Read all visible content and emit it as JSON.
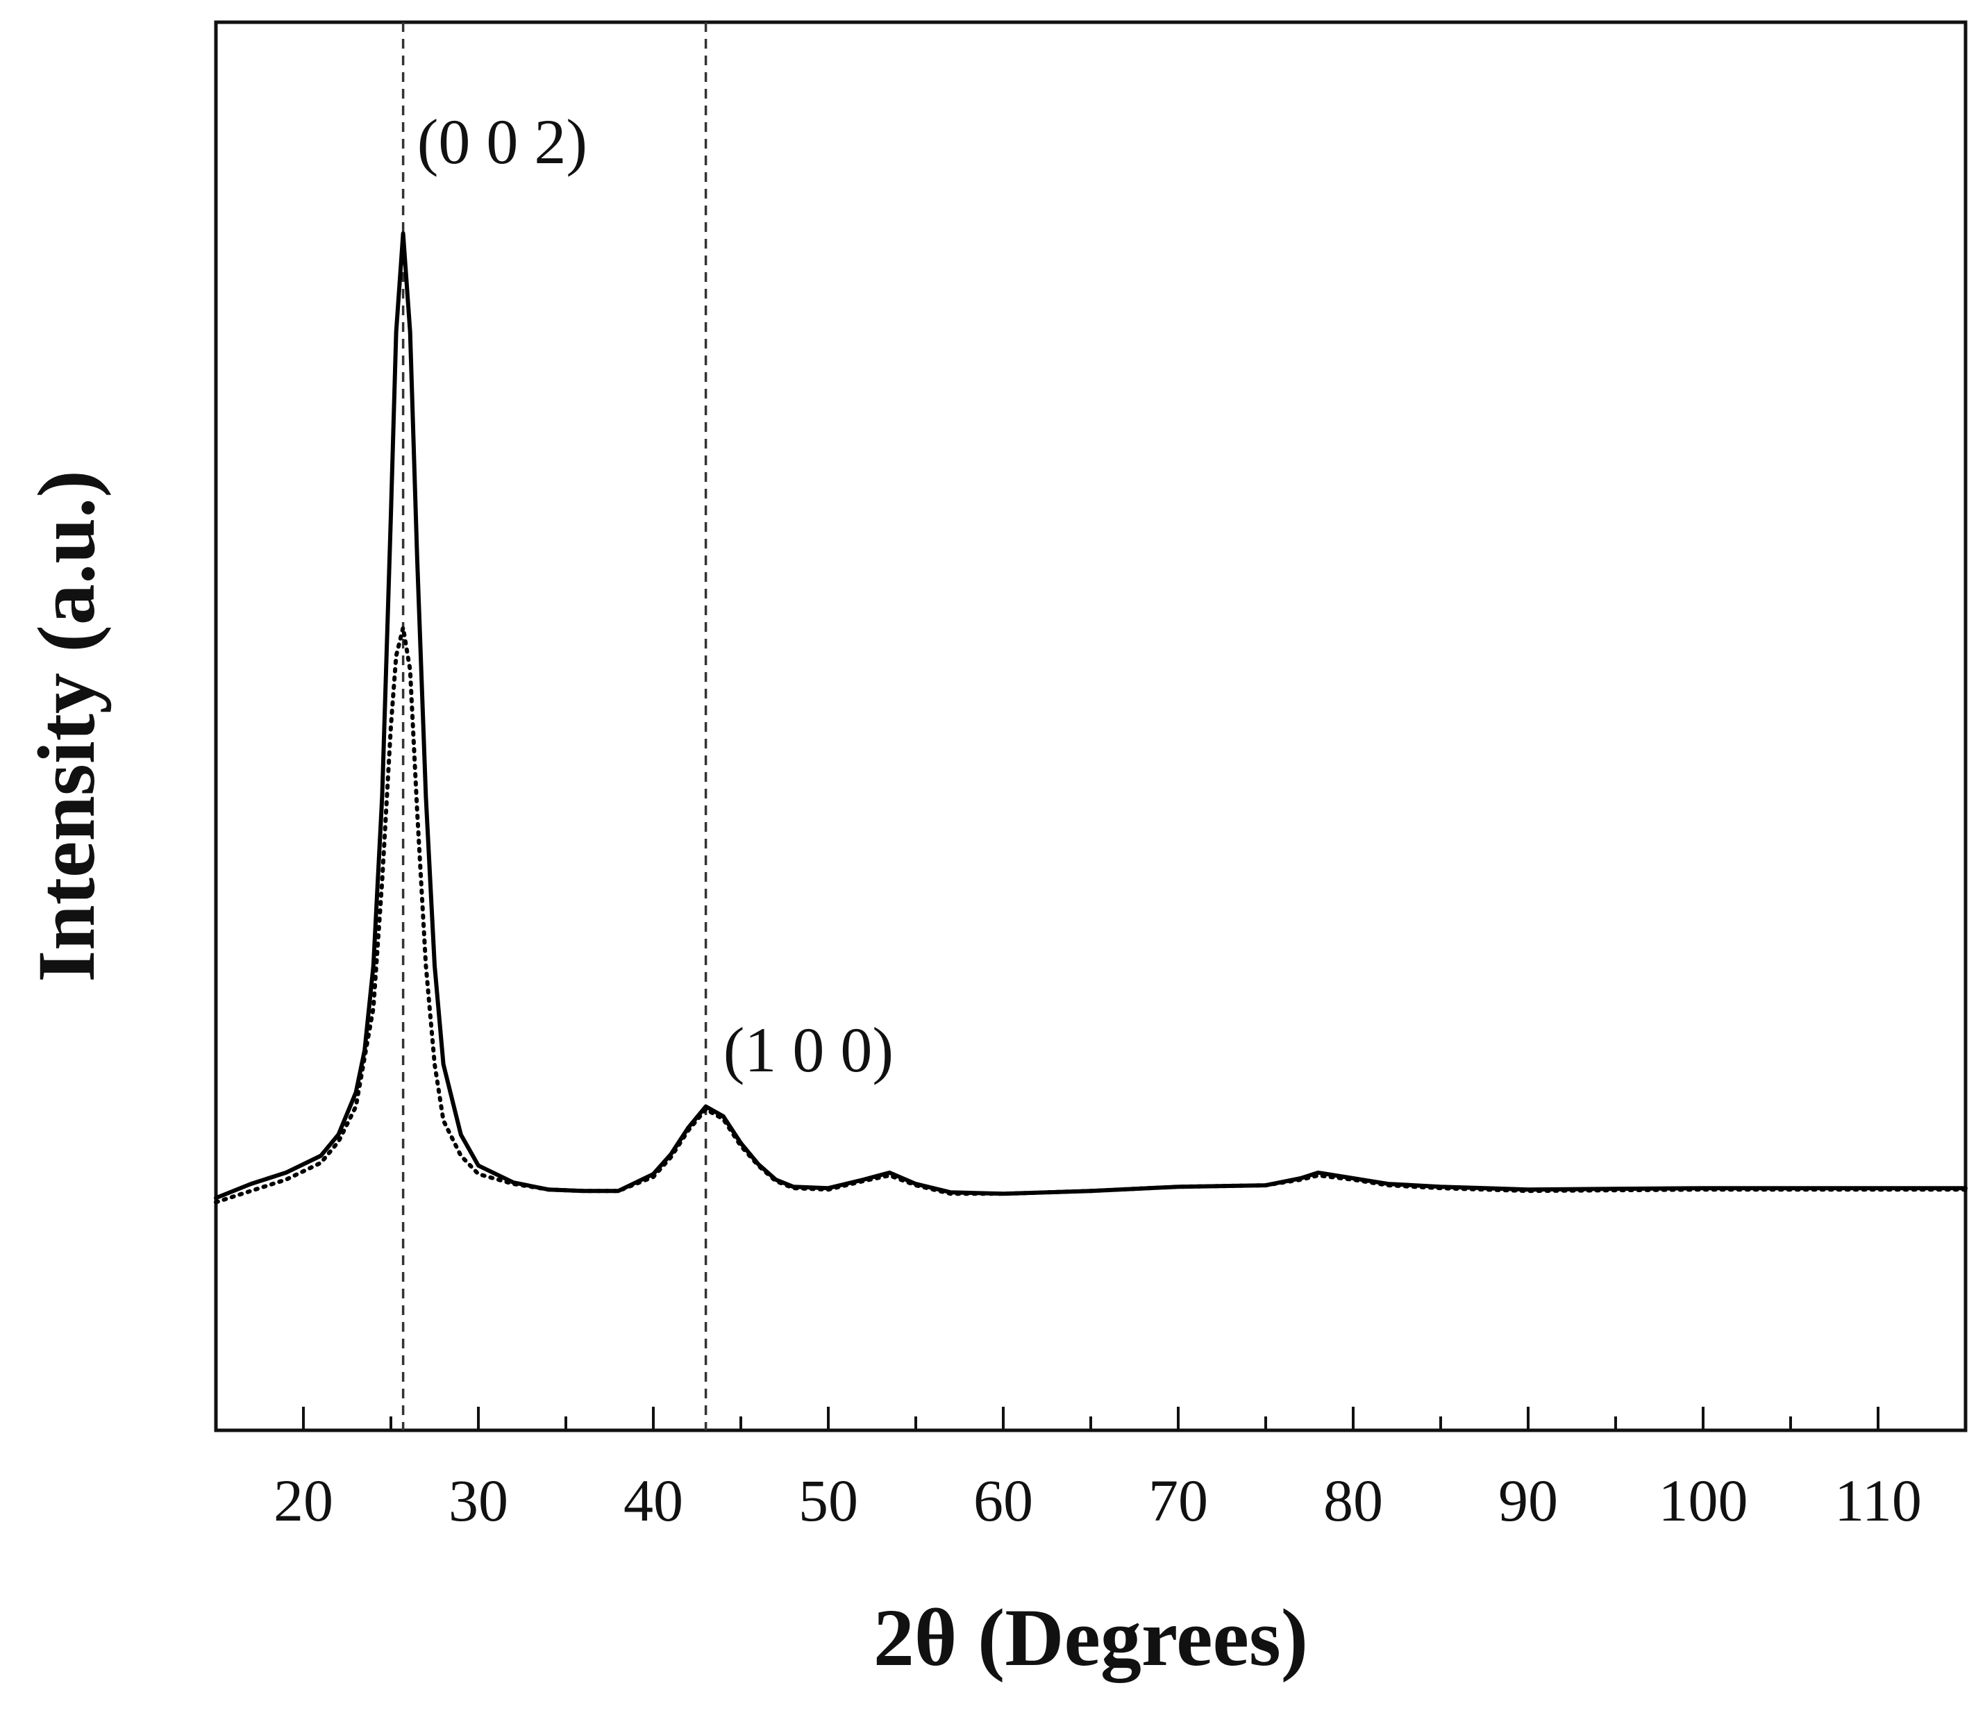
{
  "chart_data": {
    "type": "line",
    "title": "",
    "xlabel": "2θ (Degrees)",
    "ylabel": "Intensity (a.u.)",
    "xlim": [
      15,
      115
    ],
    "ylim": [
      0,
      100
    ],
    "x_ticks": [
      20,
      30,
      40,
      50,
      60,
      70,
      80,
      90,
      100,
      110
    ],
    "x_tick_labels": [
      "20",
      "30",
      "40",
      "50",
      "60",
      "70",
      "80",
      "90",
      "100",
      "110"
    ],
    "y_tick_labels_shown": false,
    "grid": false,
    "legend": "none",
    "reference_lines": [
      {
        "x": 25.7,
        "style": "dashed"
      },
      {
        "x": 43.0,
        "style": "dashed"
      }
    ],
    "annotations": [
      {
        "text": "(0 0 2)",
        "x": 26.5,
        "y": 90
      },
      {
        "text": "(1 0 0)",
        "x": 44.0,
        "y": 25.5
      }
    ],
    "series": [
      {
        "style": "solid",
        "color": "#000000",
        "x": [
          15,
          17,
          19,
          21,
          22,
          23,
          23.5,
          24,
          24.5,
          25,
          25.3,
          25.7,
          26.1,
          26.5,
          27,
          27.5,
          28,
          29,
          30,
          32,
          34,
          36,
          38,
          40,
          41,
          42,
          43,
          44,
          45,
          46,
          47,
          48,
          50,
          52,
          53.5,
          55,
          57,
          60,
          65,
          70,
          75,
          77,
          78,
          80,
          82,
          85,
          90,
          100,
          110,
          115
        ],
        "y": [
          16.5,
          17.5,
          18.3,
          19.5,
          21,
          24,
          27,
          33,
          45,
          65,
          78,
          85,
          78,
          62,
          45,
          33,
          26,
          21,
          18.8,
          17.6,
          17.1,
          17.0,
          17.0,
          18.2,
          19.6,
          21.5,
          23.0,
          22.3,
          20.4,
          18.9,
          17.8,
          17.3,
          17.2,
          17.8,
          18.3,
          17.5,
          16.9,
          16.8,
          17.0,
          17.3,
          17.4,
          17.9,
          18.3,
          17.9,
          17.5,
          17.3,
          17.1,
          17.2,
          17.2,
          17.2
        ]
      },
      {
        "style": "dotted",
        "color": "#000000",
        "x": [
          15,
          17,
          19,
          21,
          22,
          23,
          24,
          24.5,
          25,
          25.3,
          25.7,
          26.1,
          26.5,
          27,
          27.5,
          28,
          29,
          30,
          32,
          34,
          36,
          38,
          40,
          41,
          42,
          43,
          44,
          45,
          46,
          47,
          48,
          50,
          52,
          53.5,
          55,
          57,
          60,
          65,
          70,
          75,
          77,
          78,
          80,
          82,
          85,
          90,
          100,
          110,
          115
        ],
        "y": [
          16.2,
          17.0,
          17.8,
          19.0,
          20.5,
          23,
          30,
          39,
          50,
          55,
          57,
          54,
          44,
          33,
          26,
          22,
          19.5,
          18.2,
          17.5,
          17.1,
          17.0,
          17.0,
          18.0,
          19.4,
          21.3,
          22.8,
          22.1,
          20.2,
          18.8,
          17.7,
          17.2,
          17.1,
          17.7,
          18.1,
          17.4,
          16.8,
          16.8,
          17.0,
          17.3,
          17.4,
          17.8,
          18.1,
          17.8,
          17.4,
          17.2,
          17.0,
          17.1,
          17.1,
          17.1
        ]
      }
    ]
  }
}
